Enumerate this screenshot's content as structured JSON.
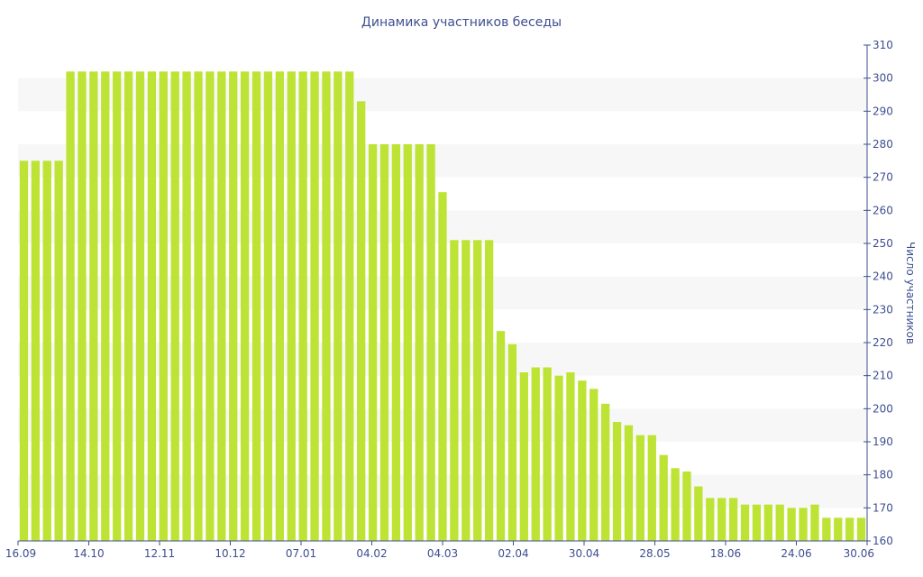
{
  "chart_data": {
    "type": "bar",
    "title": "Динамика участников беседы",
    "ylabel": "Число участников",
    "xlabel": "",
    "ylim": [
      160,
      310
    ],
    "yticks": [
      160,
      170,
      180,
      190,
      200,
      210,
      220,
      230,
      240,
      250,
      260,
      270,
      280,
      290,
      300,
      310
    ],
    "y_axis_side": "right",
    "grid": "alternating horizontal bands",
    "bar_color": "#bde334",
    "x_tick_labels": [
      "16.09",
      "14.10",
      "12.11",
      "10.12",
      "07.01",
      "04.02",
      "04.03",
      "02.04",
      "30.04",
      "28.05",
      "18.06",
      "24.06",
      "30.06"
    ],
    "values": [
      275,
      275,
      275,
      275,
      302,
      302,
      302,
      302,
      302,
      302,
      302,
      302,
      302,
      302,
      302,
      302,
      302,
      302,
      302,
      302,
      302,
      302,
      302,
      302,
      302,
      302,
      302,
      302,
      302,
      293,
      280,
      280,
      280,
      280,
      280,
      280,
      265.5,
      251,
      251,
      251,
      251,
      223.5,
      219.5,
      211,
      212.5,
      212.5,
      210,
      211,
      208.5,
      206,
      201.5,
      196,
      195,
      192,
      192,
      186,
      182,
      181,
      176.5,
      173,
      173,
      173,
      171,
      171,
      171,
      171,
      170,
      170,
      171,
      167,
      167,
      167,
      167
    ]
  }
}
